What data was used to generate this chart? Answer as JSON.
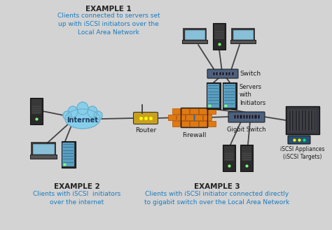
{
  "bg_color": "#d3d3d3",
  "example1_title": "EXAMPLE 1",
  "example1_text": "Clients connected to servers set\nup with iSCSI initiators over the\nLocal Area Network",
  "example2_title": "EXAMPLE 2",
  "example2_text": "Clients with iSCSI  initiators\nover the internet",
  "example3_title": "EXAMPLE 3",
  "example3_text": "Clients with iSCSI initiator connected directly\nto gigabit switch over the Local Area Network",
  "label_switch": "Switch",
  "label_servers_initiators": "Servers\nwith\nInitiators",
  "label_internet": "Internet",
  "label_router": "Router",
  "label_firewall": "Firewall",
  "label_gigbit_switch": "Gigbit Switch",
  "label_iscsi": "iSCSI Appliances\n(iSCSI Targets)",
  "blue_text_color": "#1a7bbf",
  "dark_text_color": "#1a1a1a",
  "example_title_color": "#222222",
  "cloud_color": "#87ceeb",
  "cloud_edge": "#6ab0cc",
  "router_body": "#c8a020",
  "firewall_brick": "#e07a10",
  "firewall_dark": "#c05a08",
  "switch_color": "#4a6080",
  "server_blue_front": "#5a9fc0",
  "server_blue_stripe": "#3a7090",
  "server_dark_body": "#2a2a2a",
  "server_dark_panel": "#383838",
  "iscsi_body": "#383840",
  "iscsi_drive": "#282830",
  "laptop_screen": "#87c0d8",
  "laptop_base": "#555555",
  "line_color": "#444444",
  "led_green": "#80ff80",
  "led_yellow": "#ffff00"
}
